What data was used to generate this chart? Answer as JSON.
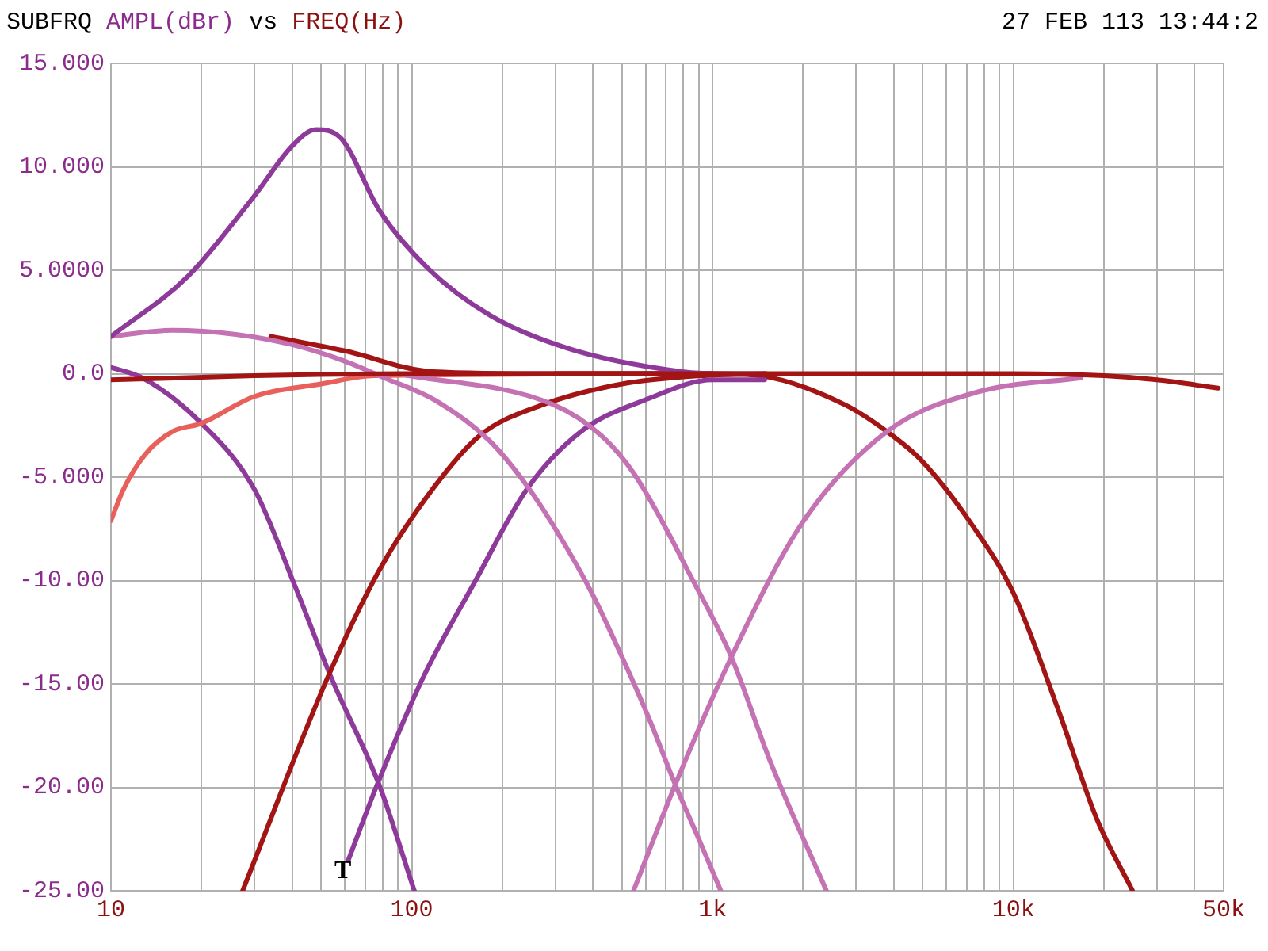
{
  "chart_data": {
    "type": "line",
    "title": "SUBFRQ",
    "ylabel": "AMPL(dBr)",
    "xlabel": "FREQ(Hz)",
    "annotations": [
      "vs",
      "27 FEB 113 13:44:2",
      "T"
    ],
    "xlim": [
      10,
      50000
    ],
    "ylim": [
      -25,
      15
    ],
    "xticks": [
      10,
      {
        "value": 20,
        "label": null
      },
      {
        "value": 30,
        "label": null
      },
      {
        "value": 40,
        "label": null
      },
      {
        "value": 50,
        "label": null
      },
      {
        "value": 60,
        "label": null
      },
      {
        "value": 70,
        "label": null
      },
      {
        "value": 80,
        "label": null
      },
      {
        "value": 90,
        "label": null
      },
      100,
      {
        "value": 200,
        "label": null
      },
      {
        "value": 300,
        "label": null
      },
      {
        "value": 400,
        "label": null
      },
      {
        "value": 500,
        "label": null
      },
      {
        "value": 600,
        "label": null
      },
      {
        "value": 700,
        "label": null
      },
      {
        "value": 800,
        "label": null
      },
      {
        "value": 900,
        "label": null
      },
      {
        "value": 1000,
        "label": "1k"
      },
      {
        "value": 2000,
        "label": null
      },
      {
        "value": 3000,
        "label": null
      },
      {
        "value": 4000,
        "label": null
      },
      {
        "value": 5000,
        "label": null
      },
      {
        "value": 6000,
        "label": null
      },
      {
        "value": 7000,
        "label": null
      },
      {
        "value": 8000,
        "label": null
      },
      {
        "value": 9000,
        "label": null
      },
      {
        "value": 10000,
        "label": "10k"
      },
      {
        "value": 20000,
        "label": null
      },
      {
        "value": 30000,
        "label": null
      },
      {
        "value": 40000,
        "label": null
      },
      {
        "value": 50000,
        "label": "50k"
      }
    ],
    "yticks": [
      {
        "value": 15,
        "label": "15.000"
      },
      {
        "value": 10,
        "label": "10.000"
      },
      {
        "value": 5,
        "label": "5.0000"
      },
      {
        "value": 0,
        "label": "0.0"
      },
      {
        "value": -5,
        "label": "-5.000"
      },
      {
        "value": -10,
        "label": "-10.00"
      },
      {
        "value": -15,
        "label": "-15.00"
      },
      {
        "value": -20,
        "label": "-20.00"
      },
      {
        "value": -25,
        "label": "-25.00"
      }
    ],
    "log": "x",
    "grid": true,
    "legend": false,
    "marker": "none",
    "line_style": "solid",
    "series": [
      {
        "color": "#a31515",
        "x": [
          10,
          30,
          100,
          1000,
          10000,
          20000,
          30000,
          48000
        ],
        "values": [
          -0.3,
          -0.1,
          0,
          0,
          0,
          -0.1,
          -0.3,
          -0.7
        ]
      },
      {
        "color": "#8e3a9a",
        "x": [
          10,
          18,
          30,
          40,
          48,
          58,
          78,
          113,
          183,
          334,
          700,
          1000,
          1500
        ],
        "values": [
          1.8,
          4.7,
          8.6,
          11,
          11.8,
          11.4,
          7.9,
          5.1,
          2.8,
          1.2,
          0.2,
          0,
          0
        ]
      },
      {
        "color": "#c472b4",
        "x": [
          10,
          16,
          26,
          40,
          60,
          81,
          120,
          180,
          241,
          306,
          400,
          500,
          620,
          753,
          900,
          1065
        ],
        "values": [
          1.8,
          2.1,
          1.9,
          1.4,
          0.6,
          -0.2,
          -1.3,
          -3.2,
          -5.4,
          -7.7,
          -10.7,
          -13.7,
          -16.8,
          -19.9,
          -22.5,
          -25
        ]
      },
      {
        "color": "#c472b4",
        "x": [
          90,
          296,
          427,
          546,
          713,
          812,
          1155,
          1560,
          2390
        ],
        "values": [
          0,
          -1.5,
          -3,
          -4.8,
          -7.7,
          -9.3,
          -13.7,
          -18.8,
          -25
        ]
      },
      {
        "color": "#c472b4",
        "x": [
          546,
          765,
          1155,
          1990,
          3800,
          7550,
          16800
        ],
        "values": [
          -25,
          -19.6,
          -13.7,
          -7.2,
          -2.8,
          -0.9,
          -0.2
        ]
      },
      {
        "color": "#a31515",
        "x": [
          27.4,
          52.5,
          78,
          117,
          168,
          273,
          500,
          910,
          1500
        ],
        "values": [
          -25,
          -14.7,
          -9.5,
          -5.6,
          -3,
          -1.5,
          -0.5,
          -0.1,
          0
        ]
      },
      {
        "color": "#8e3a9a",
        "x": [
          61.6,
          76.6,
          109,
          163,
          241,
          365,
          615,
          1000,
          1490
        ],
        "values": [
          -23.5,
          -19.9,
          -14.7,
          -10,
          -5.6,
          -2.8,
          -1.2,
          -0.3,
          -0.3
        ]
      },
      {
        "color": "#a31515",
        "x": [
          300,
          1000,
          1440,
          2750,
          3800,
          4950,
          7200,
          10000,
          14300,
          18900,
          24900
        ],
        "values": [
          0,
          0,
          -0.1,
          -1.5,
          -2.8,
          -4.2,
          -7.2,
          -10.6,
          -16.5,
          -21.5,
          -25
        ]
      },
      {
        "color": "#a31515",
        "x": [
          34,
          60,
          117,
          300,
          1000
        ],
        "values": [
          1.8,
          1.1,
          0.1,
          0,
          0
        ]
      },
      {
        "color": "#e8605c",
        "x": [
          10,
          11,
          13,
          16,
          20,
          30,
          50,
          75,
          1000
        ],
        "values": [
          -7.1,
          -5.6,
          -3.9,
          -2.8,
          -2.4,
          -1.1,
          -0.5,
          -0.1,
          0
        ]
      },
      {
        "color": "#8e3a9a",
        "x": [
          10,
          12.7,
          20,
          30,
          41,
          54,
          78,
          102
        ],
        "values": [
          0.3,
          -0.2,
          -2.4,
          -5.6,
          -10.3,
          -14.7,
          -19.9,
          -25
        ]
      }
    ]
  }
}
